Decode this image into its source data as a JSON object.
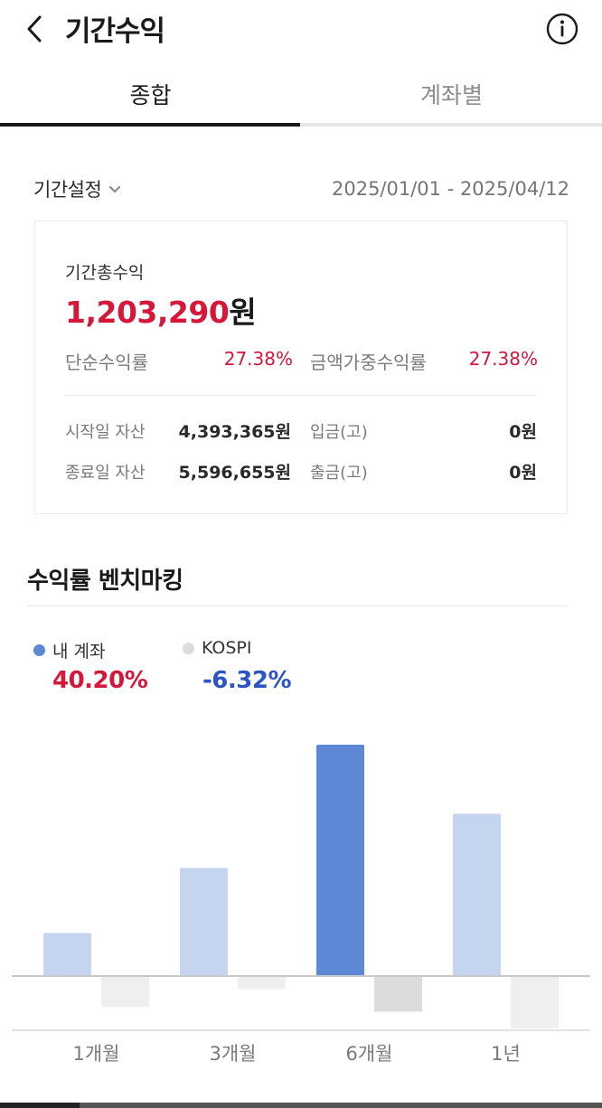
{
  "header": {
    "title": "기간수익",
    "back_icon": "chevron-left-icon",
    "info_icon": "info-circle-icon"
  },
  "tabs": [
    {
      "label": "종합",
      "active": true
    },
    {
      "label": "계좌별",
      "active": false
    }
  ],
  "period": {
    "label": "기간설정",
    "dropdown_icon": "chevron-down-icon",
    "range": "2025/01/01 - 2025/04/12"
  },
  "summary": {
    "total_label": "기간총수익",
    "total_amount": "1,203,290",
    "total_unit": "원",
    "simple_rate_label": "단순수익률",
    "simple_rate": "27.38%",
    "weighted_rate_label": "금액가중수익률",
    "weighted_rate": "27.38%",
    "start_asset_label": "시작일 자산",
    "start_asset": "4,393,365원",
    "end_asset_label": "종료일 자산",
    "end_asset": "5,596,655원",
    "deposit_label": "입금(고)",
    "deposit": "0원",
    "withdraw_label": "출금(고)",
    "withdraw": "0원"
  },
  "benchmark": {
    "title": "수익률 벤치마킹",
    "my_account_label": "내 계좌",
    "my_account_value": "40.20%",
    "kospi_label": "KOSPI",
    "kospi_value": "-6.32%"
  },
  "colors": {
    "positive": "#d6173a",
    "negative": "#2b54c7",
    "my_bar_selected": "#5d88d5",
    "my_bar": "#c5d5ef",
    "kospi_bar_selected": "#dcdcdc",
    "kospi_bar": "#efefef"
  },
  "chart_data": {
    "type": "bar",
    "categories": [
      "1개월",
      "3개월",
      "6개월",
      "1년"
    ],
    "selected_index": 2,
    "series": [
      {
        "name": "내 계좌",
        "values": [
          7.5,
          18.8,
          40.2,
          28.2
        ]
      },
      {
        "name": "KOSPI",
        "values": [
          -5.5,
          -2.3,
          -6.32,
          -9.3
        ]
      }
    ],
    "ylim": [
      -9.3,
      40.2
    ],
    "grid": false
  }
}
